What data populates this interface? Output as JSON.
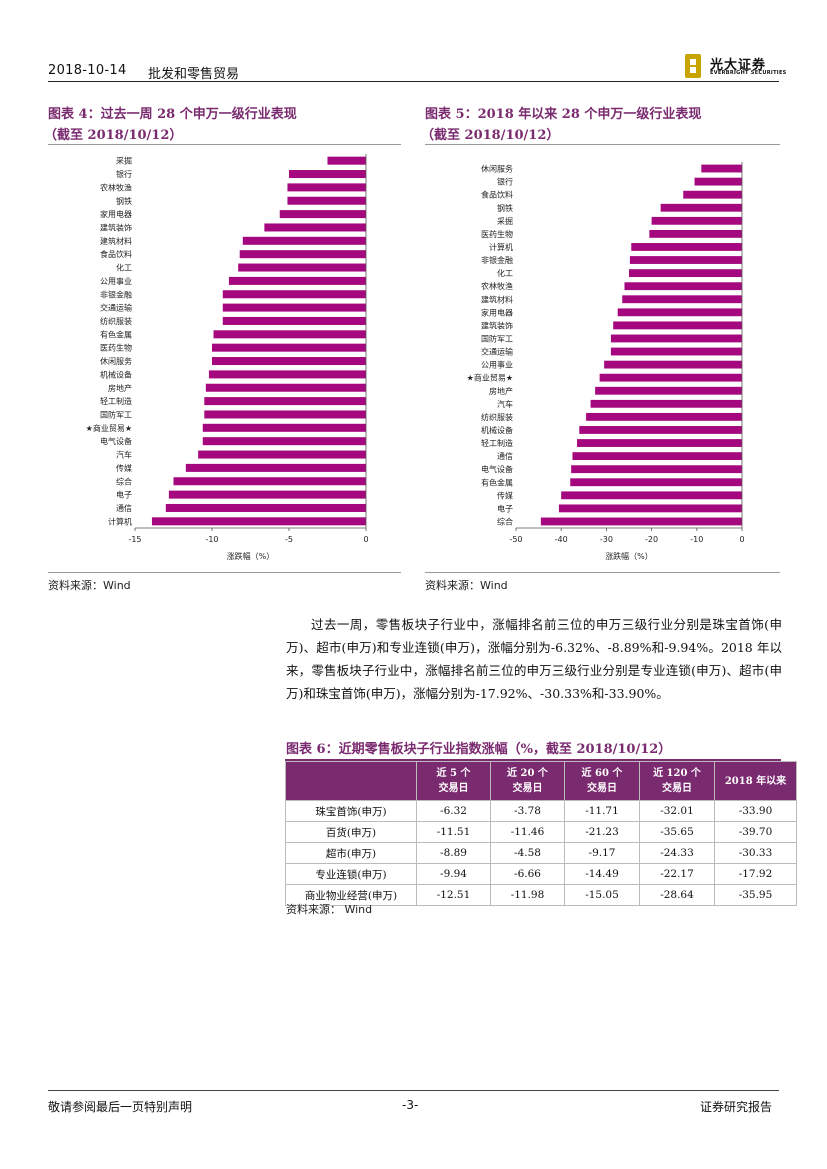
{
  "header": {
    "date": "2018-10-14",
    "title": "批发和零售贸易",
    "logo_cn": "光大证券",
    "logo_en": "EVERBRIGHT SECURITIES",
    "logo_color": "#c9a400"
  },
  "figure4": {
    "title_line1": "图表 4：过去一周 28 个申万一级行业表现",
    "title_line2": "（截至 2018/10/12）",
    "source": "资料来源：Wind"
  },
  "figure5": {
    "title_line1": "图表 5：2018 年以来 28 个申万一级行业表现",
    "title_line2": "（截至 2018/10/12）",
    "source": "资料来源：Wind"
  },
  "chart_data": [
    {
      "type": "bar",
      "orientation": "horizontal",
      "categories": [
        "采掘",
        "银行",
        "农林牧渔",
        "钢铁",
        "家用电器",
        "建筑装饰",
        "建筑材料",
        "食品饮料",
        "化工",
        "公用事业",
        "非银金融",
        "交通运输",
        "纺织服装",
        "有色金属",
        "医药生物",
        "休闲服务",
        "机械设备",
        "房地产",
        "轻工制造",
        "国防军工",
        "★商业贸易★",
        "电气设备",
        "汽车",
        "传媒",
        "综合",
        "电子",
        "通信",
        "计算机"
      ],
      "values": [
        -2.5,
        -5.0,
        -5.1,
        -5.1,
        -5.6,
        -6.6,
        -8.0,
        -8.2,
        -8.3,
        -8.9,
        -9.3,
        -9.3,
        -9.3,
        -9.9,
        -10.0,
        -10.0,
        -10.2,
        -10.4,
        -10.5,
        -10.5,
        -10.6,
        -10.6,
        -10.9,
        -11.7,
        -12.5,
        -12.8,
        -13.0,
        -13.9
      ],
      "xlabel": "涨跌幅（%）",
      "xlim": [
        -15,
        0
      ],
      "xticks": [
        -15,
        -10,
        -5,
        0
      ],
      "bar_color": "#a5087e"
    },
    {
      "type": "bar",
      "orientation": "horizontal",
      "categories": [
        "休闲服务",
        "银行",
        "食品饮料",
        "钢铁",
        "采掘",
        "医药生物",
        "计算机",
        "非银金融",
        "化工",
        "农林牧渔",
        "建筑材料",
        "家用电器",
        "建筑装饰",
        "国防军工",
        "交通运输",
        "公用事业",
        "★商业贸易★",
        "房地产",
        "汽车",
        "纺织服装",
        "机械设备",
        "轻工制造",
        "通信",
        "电气设备",
        "有色金属",
        "传媒",
        "电子",
        "综合"
      ],
      "values": [
        -9.0,
        -10.5,
        -13.0,
        -18.0,
        -20.0,
        -20.5,
        -24.5,
        -24.8,
        -25.0,
        -26.0,
        -26.5,
        -27.5,
        -28.5,
        -29.0,
        -29.0,
        -30.5,
        -31.5,
        -32.5,
        -33.5,
        -34.5,
        -36.0,
        -36.5,
        -37.5,
        -37.8,
        -38.0,
        -40.0,
        -40.5,
        -44.5
      ],
      "xlabel": "涨跌幅（%）",
      "xlim": [
        -50,
        0
      ],
      "xticks": [
        -50,
        -40,
        -30,
        -20,
        -10,
        0
      ],
      "bar_color": "#a5087e"
    }
  ],
  "paragraph": "过去一周，零售板块子行业中，涨幅排名前三位的申万三级行业分别是珠宝首饰(申万)、超市(申万)和专业连锁(申万)，涨幅分别为-6.32%、-8.89%和-9.94%。2018 年以来，零售板块子行业中，涨幅排名前三位的申万三级行业分别是专业连锁(申万)、超市(申万)和珠宝首饰(申万)，涨幅分别为-17.92%、-30.33%和-33.90%。",
  "table6": {
    "title": "图表 6：近期零售板块子行业指数涨幅（%，截至 2018/10/12）",
    "headers": [
      {
        "l1": "近 5 个",
        "l2": "交易日"
      },
      {
        "l1": "近 20 个",
        "l2": "交易日"
      },
      {
        "l1": "近 60 个",
        "l2": "交易日"
      },
      {
        "l1": "近 120 个",
        "l2": "交易日"
      },
      {
        "l1": "2018 年以来",
        "l2": ""
      }
    ],
    "rows": [
      {
        "name": "珠宝首饰(申万)",
        "values": [
          "-6.32",
          "-3.78",
          "-11.71",
          "-32.01",
          "-33.90"
        ]
      },
      {
        "name": "百货(申万)",
        "values": [
          "-11.51",
          "-11.46",
          "-21.23",
          "-35.65",
          "-39.70"
        ]
      },
      {
        "name": "超市(申万)",
        "values": [
          "-8.89",
          "-4.58",
          "-9.17",
          "-24.33",
          "-30.33"
        ]
      },
      {
        "name": "专业连锁(申万)",
        "values": [
          "-9.94",
          "-6.66",
          "-14.49",
          "-22.17",
          "-17.92"
        ]
      },
      {
        "name": "商业物业经营(申万)",
        "values": [
          "-12.51",
          "-11.98",
          "-15.05",
          "-28.64",
          "-35.95"
        ]
      }
    ],
    "source": "资料来源：   Wind"
  },
  "footer": {
    "left": "敬请参阅最后一页特别声明",
    "page": "-3-",
    "right": "证券研究报告"
  }
}
